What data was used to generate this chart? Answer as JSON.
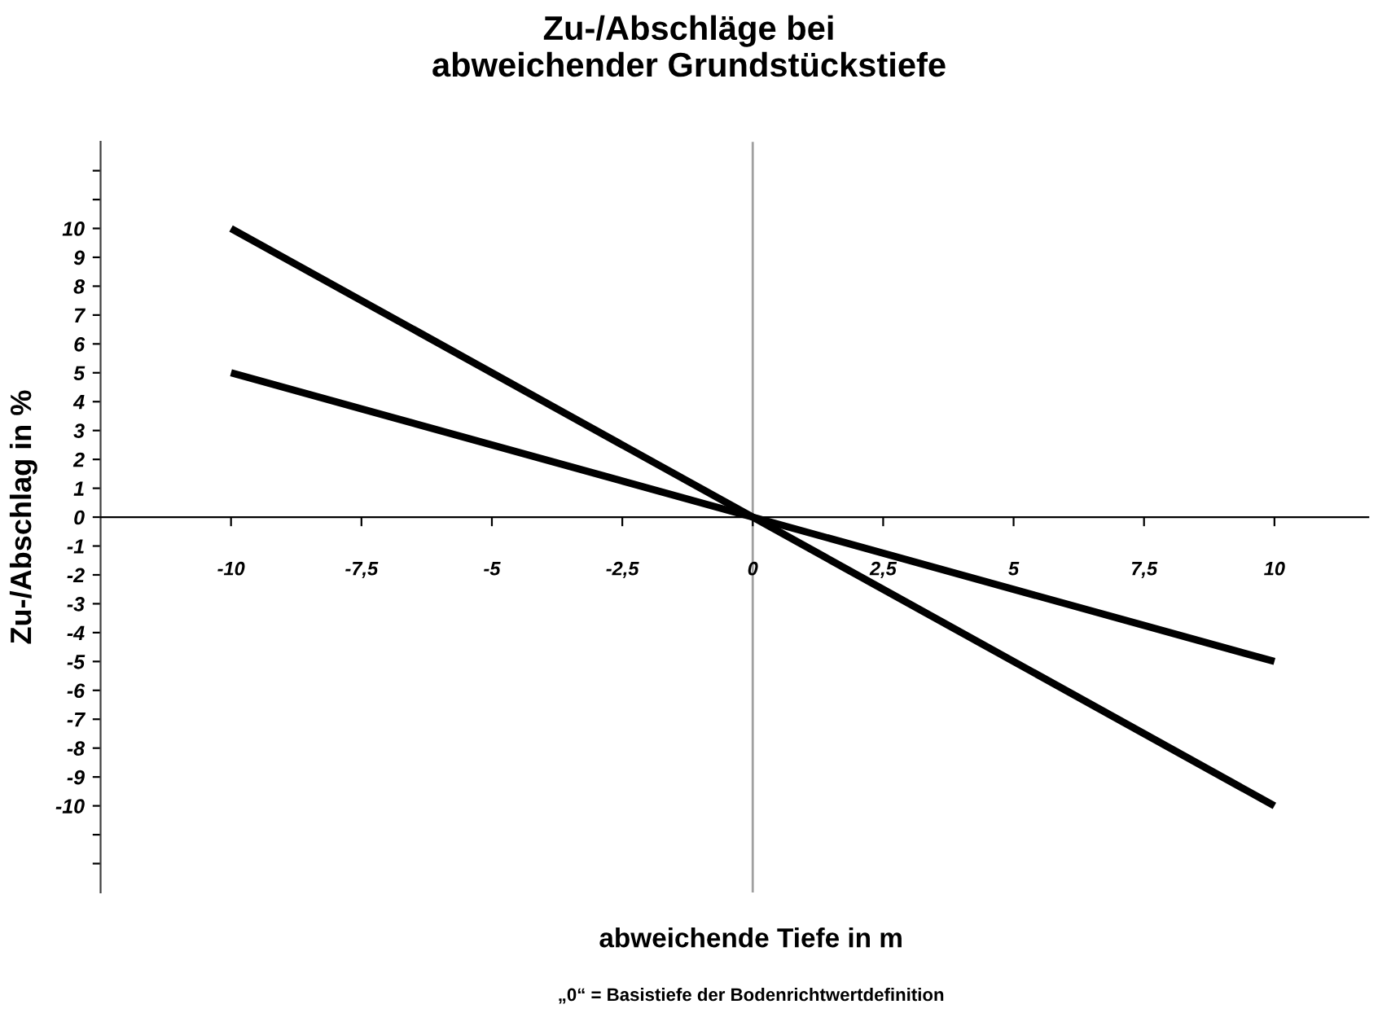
{
  "chart_data": {
    "type": "line",
    "title": "Zu-/Abschläge bei\nabweichender Grundstückstiefe",
    "xlabel": "abweichende Tiefe in m",
    "ylabel": "Zu-/Abschlag in %",
    "annotations": [
      "„0“ = Basistiefe der Bodenrichtwertdefinition"
    ],
    "series": [
      {
        "color": "#000000",
        "values": [
          10,
          -10
        ]
      },
      {
        "color": "#000000",
        "values": [
          5,
          -5
        ]
      }
    ],
    "x": [
      -10,
      10
    ],
    "xlim": [
      -12.5,
      11.8
    ],
    "ylim": [
      -13,
      13
    ],
    "xticks": [
      -10,
      {
        "value": -7.5,
        "label": "-7,5"
      },
      -5,
      {
        "value": -2.5,
        "label": "-2,5"
      },
      0,
      {
        "value": 2.5,
        "label": "2,5"
      },
      5,
      {
        "value": 7.5,
        "label": "7,5"
      },
      10
    ],
    "yticks": [
      {
        "value": -12,
        "label": null
      },
      {
        "value": -11,
        "label": null
      },
      -10,
      -9,
      -8,
      -7,
      -6,
      -5,
      -4,
      -3,
      -2,
      -1,
      0,
      1,
      2,
      3,
      4,
      5,
      6,
      7,
      8,
      9,
      10,
      {
        "value": 11,
        "label": null
      },
      {
        "value": 12,
        "label": null
      }
    ],
    "ref_lines": [
      {
        "axis": "x",
        "value": 0,
        "color": "#a0a0a0"
      }
    ],
    "grid": false,
    "legend": false,
    "marker": "none",
    "line_style": "solid"
  }
}
